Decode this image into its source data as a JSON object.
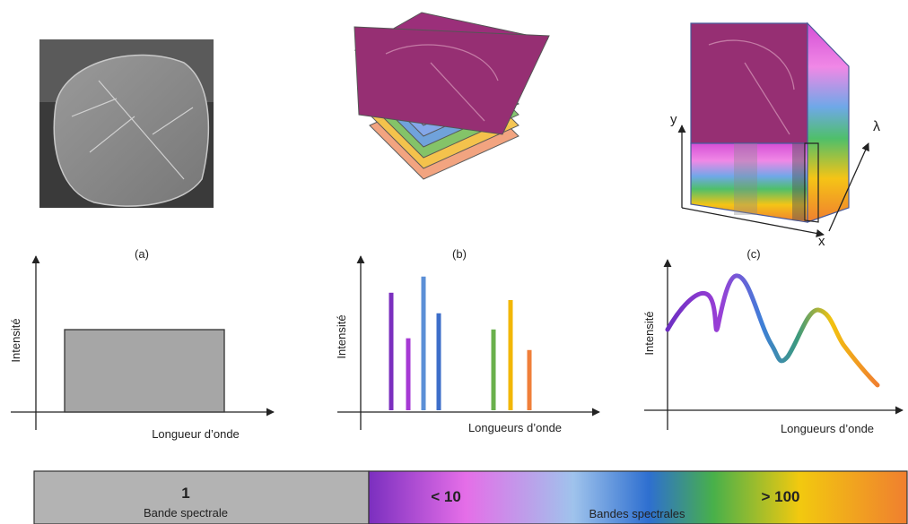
{
  "panels": {
    "a": {
      "caption": "(a)"
    },
    "b": {
      "caption": "(b)"
    },
    "c": {
      "caption": "(c)",
      "axis_y": "y",
      "axis_x": "x",
      "axis_lambda": "λ"
    }
  },
  "graphs": {
    "a": {
      "ylabel": "Intensité",
      "xlabel": "Longueur d’onde"
    },
    "b": {
      "ylabel": "Intensité",
      "xlabel": "Longueurs d’onde",
      "bars": [
        {
          "h": 0.8,
          "color": "#7b2fbf"
        },
        {
          "h": 0.49,
          "color": "#a63ad4"
        },
        {
          "h": 0.91,
          "color": "#5b8fd6"
        },
        {
          "h": 0.66,
          "color": "#3d6ec9"
        },
        {
          "h": 0.55,
          "color": "#6ab04c"
        },
        {
          "h": 0.75,
          "color": "#f2b705"
        },
        {
          "h": 0.41,
          "color": "#f07f3a"
        }
      ]
    },
    "c": {
      "ylabel": "Intensité",
      "xlabel": "Longueurs d’onde"
    }
  },
  "legend_bar": {
    "left_number": "1",
    "left_label": "Bande spectrale",
    "mid_number": "< 10",
    "right_number": "> 100",
    "right_label": "Bandes spectrales",
    "left_color": "#b3b3b3"
  }
}
